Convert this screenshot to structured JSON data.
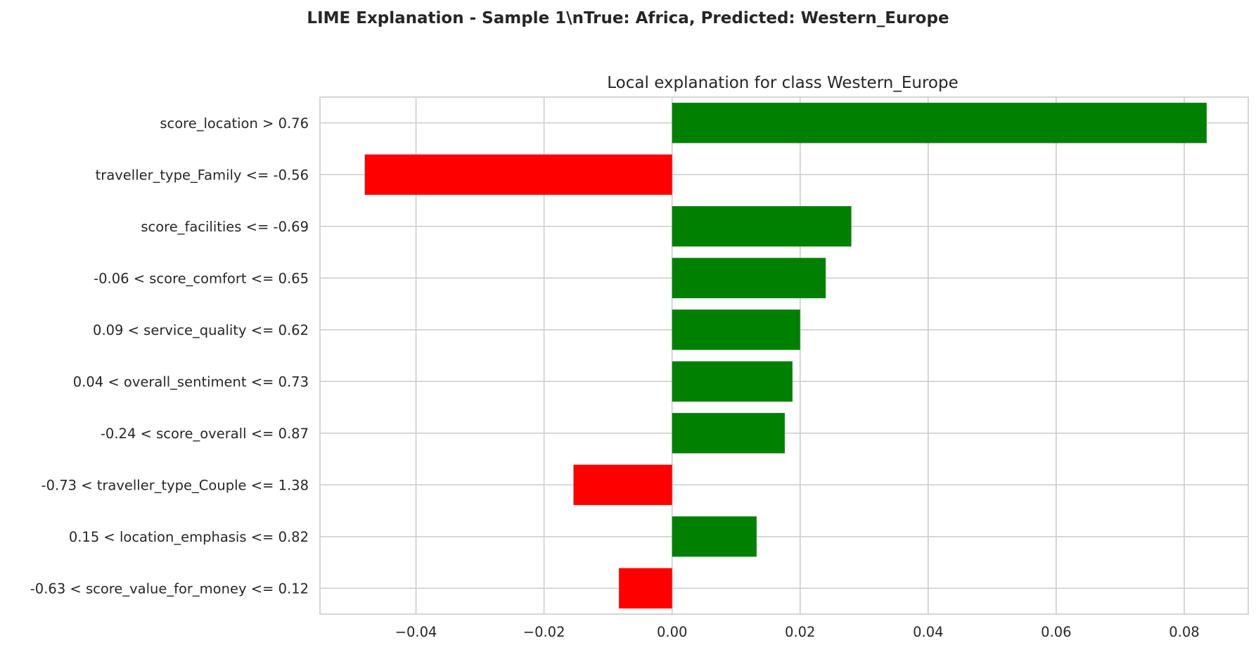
{
  "figure": {
    "suptitle": "LIME Explanation - Sample 1\\nTrue: Africa, Predicted: Western_Europe"
  },
  "chart_data": {
    "type": "bar",
    "orientation": "horizontal",
    "title": "Local explanation for class Western_Europe",
    "xlabel": "",
    "ylabel": "",
    "xlim": [
      -0.055,
      0.09
    ],
    "xticks": [
      -0.04,
      -0.02,
      0.0,
      0.02,
      0.04,
      0.06,
      0.08
    ],
    "xtick_labels": [
      "−0.04",
      "−0.02",
      "0.00",
      "0.02",
      "0.04",
      "0.06",
      "0.08"
    ],
    "grid": true,
    "categories": [
      "score_location > 0.76",
      "traveller_type_Family <= -0.56",
      "score_facilities <= -0.69",
      "-0.06 < score_comfort <= 0.65",
      "0.09 < service_quality <= 0.62",
      "0.04 < overall_sentiment <= 0.73",
      "-0.24 < score_overall <= 0.87",
      "-0.73 < traveller_type_Couple <= 1.38",
      "0.15 < location_emphasis <= 0.82",
      "-0.63 < score_value_for_money <= 0.12"
    ],
    "values": [
      0.0835,
      -0.048,
      0.028,
      0.024,
      0.02,
      0.0188,
      0.0176,
      -0.0154,
      0.0132,
      -0.0083
    ],
    "colors": {
      "positive": "#008000",
      "negative": "#ff0000",
      "grid": "#cccccc",
      "spine": "#cccccc"
    }
  }
}
